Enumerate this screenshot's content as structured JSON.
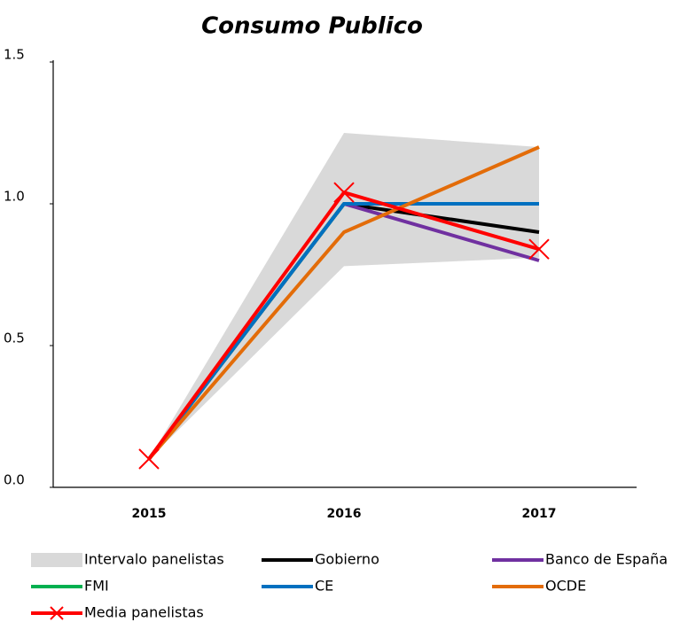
{
  "chart_data": {
    "type": "line",
    "title": "Consumo Publico",
    "categories": [
      "2015",
      "2016",
      "2017"
    ],
    "ylim": [
      0,
      1.5
    ],
    "yticks": [
      {
        "value": 0,
        "label": "0.0"
      },
      {
        "value": 0.5,
        "label": "0.5"
      },
      {
        "value": 1,
        "label": "1.0"
      },
      {
        "value": 1.5,
        "label": "1.5"
      }
    ],
    "grid": false,
    "legend": "bottom",
    "band": {
      "name": "Intervalo panelistas",
      "color": "#d9d9d9",
      "low": [
        0.1,
        0.78,
        0.81
      ],
      "high": [
        0.1,
        1.25,
        1.2
      ]
    },
    "series": [
      {
        "name": "Gobierno",
        "color": "#000000",
        "values": [
          0.1,
          1.0,
          0.9
        ]
      },
      {
        "name": "Banco de España",
        "color": "#7030a0",
        "values": [
          0.1,
          1.0,
          0.8
        ]
      },
      {
        "name": "FMI",
        "color": "#00b050",
        "values": [
          0.1,
          1.0,
          1.0
        ]
      },
      {
        "name": "CE",
        "color": "#0070c0",
        "values": [
          0.1,
          1.0,
          1.0
        ]
      },
      {
        "name": "OCDE",
        "color": "#e36c09",
        "values": [
          0.1,
          0.9,
          1.2
        ]
      },
      {
        "name": "Media panelistas",
        "color": "#ff0000",
        "values": [
          0.1,
          1.04,
          0.84
        ],
        "marker": "x"
      }
    ]
  }
}
